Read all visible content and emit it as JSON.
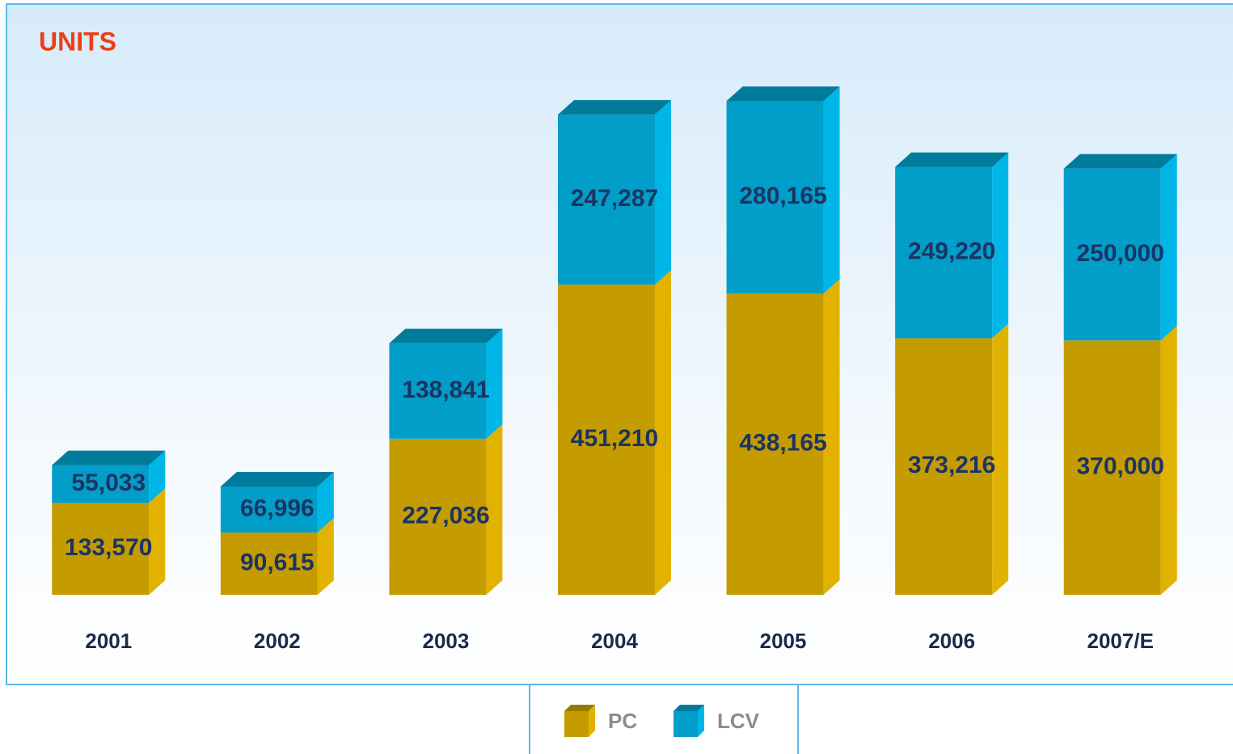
{
  "chart_data": {
    "type": "bar",
    "stacked": true,
    "title": "UNITS",
    "categories": [
      "2001",
      "2002",
      "2003",
      "2004",
      "2005",
      "2006",
      "2007/E"
    ],
    "series": [
      {
        "name": "PC",
        "color": "#c49c00",
        "values": [
          133570,
          90615,
          227036,
          451210,
          438165,
          373216,
          370000
        ],
        "value_labels": [
          "133,570",
          "90,615",
          "227,036",
          "451,210",
          "438,165",
          "373,216",
          "370,000"
        ]
      },
      {
        "name": "LCV",
        "color": "#009ec8",
        "values": [
          55033,
          66996,
          138841,
          247287,
          280165,
          249220,
          250000
        ],
        "value_labels": [
          "55,033",
          "66,996",
          "138,841",
          "247,287",
          "280,165",
          "249,220",
          "250,000"
        ]
      }
    ]
  }
}
